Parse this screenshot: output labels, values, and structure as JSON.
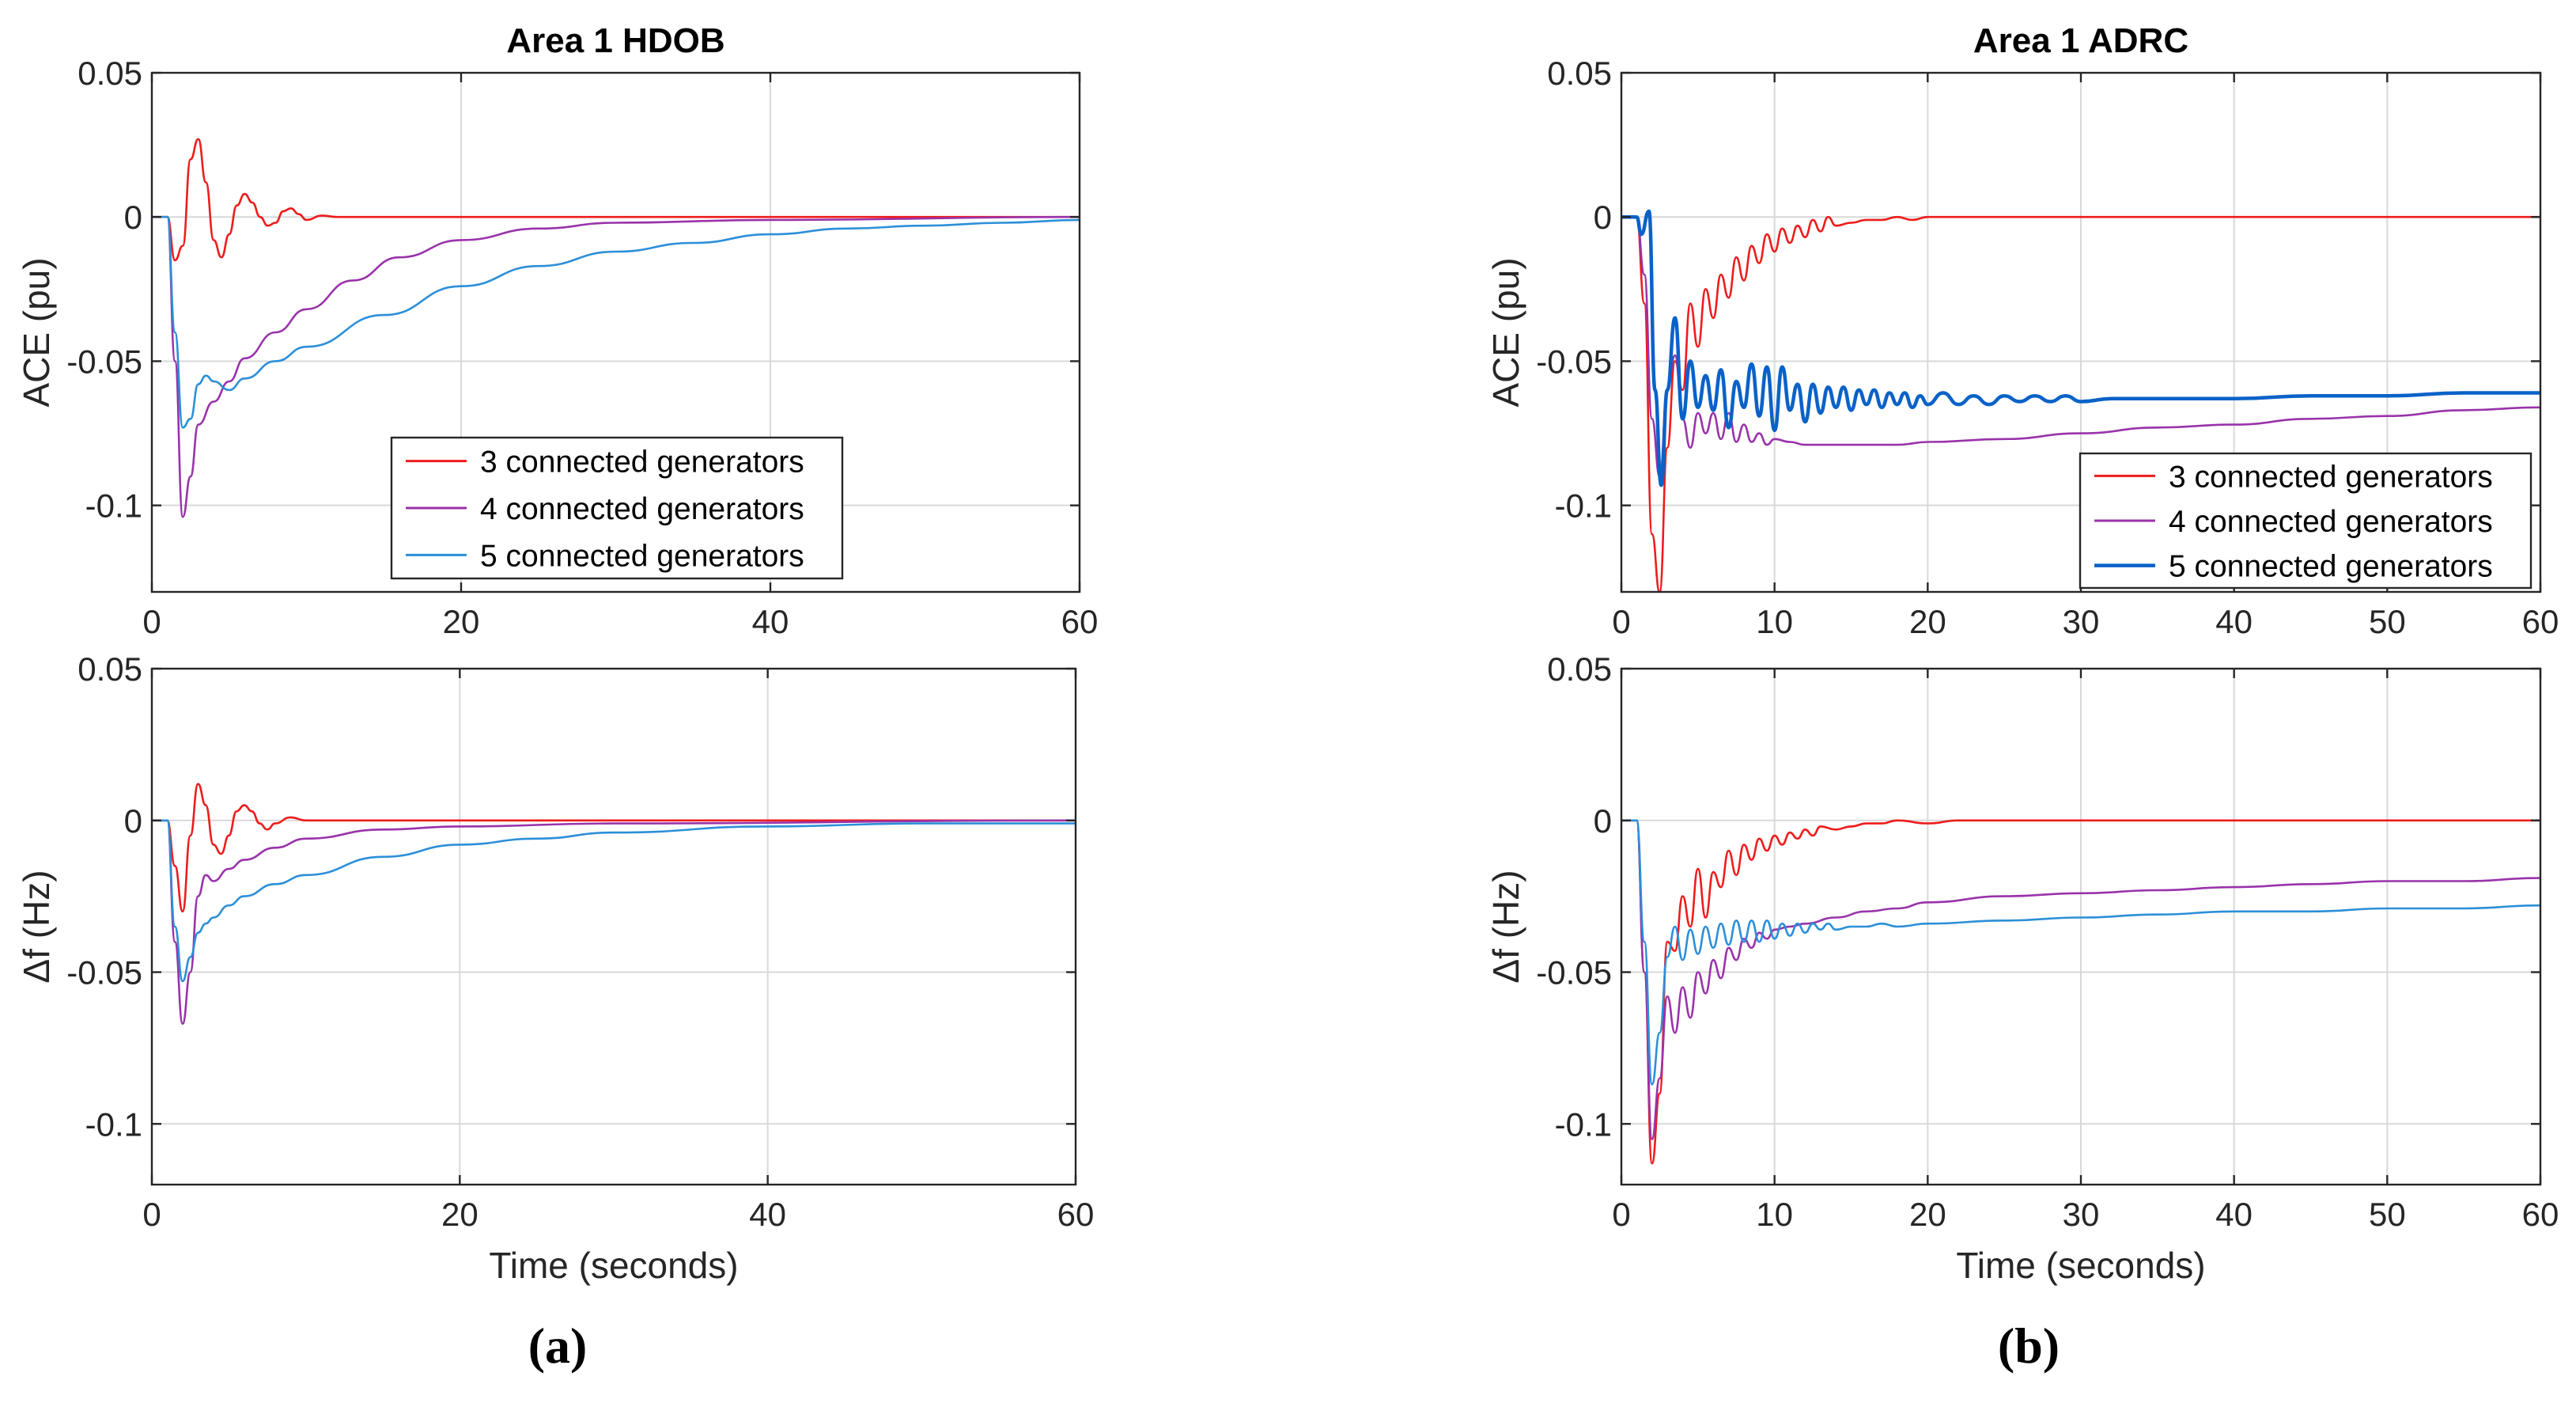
{
  "figure": {
    "panel_labels": [
      "(a)",
      "(b)"
    ]
  },
  "colors": {
    "red": "#ee1c1c",
    "purple": "#9933aa",
    "blue": "#2c8fd8",
    "blue_thick": "#0a62c8",
    "grid": "#d9d9d9",
    "axis": "#262626"
  },
  "chart_data": [
    {
      "id": "a_ace",
      "type": "line",
      "title": "Area 1 HDOB",
      "xlabel": "",
      "ylabel": "ACE (pu)",
      "xlim": [
        0,
        60
      ],
      "ylim": [
        -0.13,
        0.05
      ],
      "xticks": [
        0,
        20,
        40,
        60
      ],
      "xtick_labels": [
        "0",
        "20",
        "40",
        "60"
      ],
      "yticks": [
        0.05,
        0,
        -0.05,
        -0.1
      ],
      "ytick_labels": [
        "0.05",
        "0",
        "-0.05",
        "-0.1"
      ],
      "grid": true,
      "legend": {
        "position": "center-right-lower"
      },
      "series": [
        {
          "name": "3 connected generators",
          "color": "#ee1c1c",
          "x": [
            0,
            1,
            1.5,
            2,
            2.5,
            3,
            3.5,
            4,
            4.5,
            5,
            5.5,
            6,
            6.5,
            7,
            7.5,
            8,
            8.5,
            9,
            9.5,
            10,
            11,
            12,
            15,
            20,
            30,
            60
          ],
          "y": [
            0,
            0,
            -0.015,
            -0.01,
            0.02,
            0.027,
            0.012,
            -0.008,
            -0.014,
            -0.006,
            0.004,
            0.008,
            0.005,
            0,
            -0.003,
            -0.002,
            0.002,
            0.003,
            0.001,
            -0.001,
            0.0005,
            0,
            0,
            0,
            0,
            0
          ]
        },
        {
          "name": "4 connected generators",
          "color": "#9933aa",
          "x": [
            0,
            1,
            1.5,
            2,
            2.5,
            3,
            4,
            5,
            6,
            8,
            10,
            13,
            16,
            20,
            25,
            30,
            40,
            60
          ],
          "y": [
            0,
            0,
            -0.05,
            -0.104,
            -0.09,
            -0.072,
            -0.064,
            -0.057,
            -0.049,
            -0.04,
            -0.032,
            -0.022,
            -0.014,
            -0.008,
            -0.004,
            -0.002,
            -0.001,
            0
          ]
        },
        {
          "name": "5 connected generators",
          "color": "#2c8fd8",
          "x": [
            0,
            1,
            1.5,
            2,
            2.5,
            3,
            3.5,
            4,
            5,
            6,
            8,
            10,
            15,
            20,
            25,
            30,
            35,
            40,
            45,
            50,
            55,
            60
          ],
          "y": [
            0,
            0,
            -0.04,
            -0.073,
            -0.07,
            -0.058,
            -0.055,
            -0.057,
            -0.06,
            -0.056,
            -0.05,
            -0.045,
            -0.034,
            -0.024,
            -0.017,
            -0.012,
            -0.009,
            -0.006,
            -0.004,
            -0.003,
            -0.002,
            -0.001
          ]
        }
      ]
    },
    {
      "id": "a_df",
      "type": "line",
      "title": "",
      "xlabel": "Time (seconds)",
      "ylabel": "Δf (Hz)",
      "xlim": [
        0,
        60
      ],
      "ylim": [
        -0.12,
        0.05
      ],
      "xticks": [
        0,
        20,
        40,
        60
      ],
      "xtick_labels": [
        "0",
        "20",
        "40",
        "60"
      ],
      "yticks": [
        0.05,
        0,
        -0.05,
        -0.1
      ],
      "ytick_labels": [
        "0.05",
        "0",
        "-0.05",
        "-0.1"
      ],
      "grid": true,
      "series": [
        {
          "name": "3 connected generators",
          "color": "#ee1c1c",
          "x": [
            0,
            1,
            1.5,
            2,
            2.5,
            3,
            3.5,
            4,
            4.5,
            5,
            5.5,
            6,
            6.5,
            7,
            7.5,
            8,
            9,
            10,
            12,
            15,
            60
          ],
          "y": [
            0,
            0,
            -0.015,
            -0.03,
            -0.005,
            0.012,
            0.005,
            -0.008,
            -0.011,
            -0.005,
            0.003,
            0.005,
            0.003,
            -0.001,
            -0.003,
            -0.001,
            0.001,
            0,
            0,
            0,
            0
          ]
        },
        {
          "name": "4 connected generators",
          "color": "#9933aa",
          "x": [
            0,
            1,
            1.5,
            2,
            2.5,
            3,
            3.5,
            4,
            5,
            6,
            8,
            10,
            15,
            20,
            30,
            60
          ],
          "y": [
            0,
            0,
            -0.04,
            -0.067,
            -0.05,
            -0.025,
            -0.018,
            -0.02,
            -0.016,
            -0.013,
            -0.009,
            -0.006,
            -0.003,
            -0.002,
            -0.001,
            0
          ]
        },
        {
          "name": "5 connected generators",
          "color": "#2c8fd8",
          "x": [
            0,
            1,
            1.5,
            2,
            2.5,
            3,
            3.5,
            4,
            5,
            6,
            8,
            10,
            15,
            20,
            25,
            30,
            40,
            50,
            60
          ],
          "y": [
            0,
            0,
            -0.035,
            -0.053,
            -0.045,
            -0.037,
            -0.034,
            -0.032,
            -0.028,
            -0.025,
            -0.021,
            -0.018,
            -0.012,
            -0.008,
            -0.006,
            -0.004,
            -0.002,
            -0.001,
            -0.001
          ]
        }
      ]
    },
    {
      "id": "b_ace",
      "type": "line",
      "title": "Area 1 ADRC",
      "xlabel": "",
      "ylabel": "ACE (pu)",
      "xlim": [
        0,
        60
      ],
      "ylim": [
        -0.13,
        0.05
      ],
      "xticks": [
        0,
        10,
        20,
        30,
        40,
        50,
        60
      ],
      "xtick_labels": [
        "0",
        "10",
        "20",
        "30",
        "40",
        "50",
        "60"
      ],
      "yticks": [
        0.05,
        0,
        -0.05,
        -0.1
      ],
      "ytick_labels": [
        "0.05",
        "0",
        "-0.05",
        "-0.1"
      ],
      "grid": true,
      "legend": {
        "position": "bottom-right"
      },
      "series": [
        {
          "name": "3 connected generators",
          "color": "#ee1c1c",
          "x": [
            0,
            1,
            1.5,
            2,
            2.5,
            3,
            3.5,
            4,
            4.5,
            5,
            5.5,
            6,
            6.5,
            7,
            7.5,
            8,
            8.5,
            9,
            9.5,
            10,
            10.5,
            11,
            11.5,
            12,
            12.5,
            13,
            13.5,
            14,
            15,
            16,
            17,
            18,
            19,
            20,
            22,
            25,
            30,
            60
          ],
          "y": [
            0,
            0,
            -0.03,
            -0.11,
            -0.13,
            -0.08,
            -0.05,
            -0.06,
            -0.03,
            -0.045,
            -0.025,
            -0.035,
            -0.02,
            -0.028,
            -0.014,
            -0.022,
            -0.01,
            -0.016,
            -0.006,
            -0.012,
            -0.004,
            -0.009,
            -0.003,
            -0.007,
            -0.001,
            -0.005,
            0,
            -0.003,
            -0.002,
            -0.001,
            -0.001,
            0,
            -0.001,
            0,
            0,
            0,
            0,
            0
          ]
        },
        {
          "name": "4 connected generators",
          "color": "#9933aa",
          "x": [
            0,
            1,
            1.5,
            2,
            2.5,
            3,
            3.5,
            4,
            4.5,
            5,
            5.5,
            6,
            6.5,
            7,
            7.5,
            8,
            8.5,
            9,
            9.5,
            10,
            11,
            12,
            14,
            16,
            18,
            20,
            25,
            30,
            35,
            40,
            45,
            50,
            55,
            60
          ],
          "y": [
            0,
            0,
            -0.02,
            -0.07,
            -0.09,
            -0.06,
            -0.048,
            -0.07,
            -0.08,
            -0.068,
            -0.075,
            -0.068,
            -0.077,
            -0.068,
            -0.078,
            -0.072,
            -0.078,
            -0.075,
            -0.079,
            -0.077,
            -0.078,
            -0.079,
            -0.079,
            -0.079,
            -0.079,
            -0.078,
            -0.077,
            -0.075,
            -0.073,
            -0.072,
            -0.07,
            -0.069,
            -0.067,
            -0.066
          ]
        },
        {
          "name": "5 connected generators",
          "color": "#0a62c8",
          "width": 4.5,
          "x": [
            0,
            1,
            1.3,
            1.8,
            2.2,
            2.6,
            3,
            3.5,
            4,
            4.5,
            5,
            5.5,
            6,
            6.5,
            7,
            7.5,
            8,
            8.5,
            9,
            9.5,
            10,
            10.5,
            11,
            11.5,
            12,
            12.5,
            13,
            13.5,
            14,
            14.5,
            15,
            15.5,
            16,
            16.5,
            17,
            17.5,
            18,
            18.5,
            19,
            19.5,
            20,
            21,
            22,
            23,
            24,
            25,
            26,
            27,
            28,
            29,
            30,
            32,
            34,
            36,
            38,
            40,
            45,
            50,
            55,
            60
          ],
          "y": [
            0,
            0,
            -0.006,
            0.002,
            -0.06,
            -0.093,
            -0.06,
            -0.035,
            -0.07,
            -0.05,
            -0.066,
            -0.055,
            -0.067,
            -0.053,
            -0.073,
            -0.057,
            -0.066,
            -0.051,
            -0.069,
            -0.052,
            -0.074,
            -0.052,
            -0.067,
            -0.058,
            -0.071,
            -0.058,
            -0.068,
            -0.059,
            -0.066,
            -0.059,
            -0.067,
            -0.06,
            -0.065,
            -0.06,
            -0.066,
            -0.061,
            -0.065,
            -0.061,
            -0.066,
            -0.062,
            -0.065,
            -0.061,
            -0.065,
            -0.062,
            -0.065,
            -0.062,
            -0.064,
            -0.062,
            -0.064,
            -0.062,
            -0.064,
            -0.063,
            -0.063,
            -0.063,
            -0.063,
            -0.063,
            -0.062,
            -0.062,
            -0.061,
            -0.061
          ]
        }
      ]
    },
    {
      "id": "b_df",
      "type": "line",
      "title": "",
      "xlabel": "Time (seconds)",
      "ylabel": "Δf (Hz)",
      "xlim": [
        0,
        60
      ],
      "ylim": [
        -0.12,
        0.05
      ],
      "xticks": [
        0,
        10,
        20,
        30,
        40,
        50,
        60
      ],
      "xtick_labels": [
        "0",
        "10",
        "20",
        "30",
        "40",
        "50",
        "60"
      ],
      "yticks": [
        0.05,
        0,
        -0.05,
        -0.1
      ],
      "ytick_labels": [
        "0.05",
        "0",
        "-0.05",
        "-0.1"
      ],
      "grid": true,
      "series": [
        {
          "name": "3 connected generators",
          "color": "#ee1c1c",
          "x": [
            0,
            1,
            1.5,
            2,
            2.5,
            3,
            3.5,
            4,
            4.5,
            5,
            5.5,
            6,
            6.5,
            7,
            7.5,
            8,
            8.5,
            9,
            9.5,
            10,
            10.5,
            11,
            11.5,
            12,
            12.5,
            13,
            14,
            15,
            16,
            17,
            18,
            20,
            22,
            25,
            30,
            60
          ],
          "y": [
            0,
            0,
            -0.05,
            -0.113,
            -0.09,
            -0.04,
            -0.043,
            -0.025,
            -0.035,
            -0.016,
            -0.032,
            -0.017,
            -0.022,
            -0.01,
            -0.018,
            -0.008,
            -0.013,
            -0.006,
            -0.01,
            -0.005,
            -0.008,
            -0.004,
            -0.006,
            -0.003,
            -0.005,
            -0.002,
            -0.003,
            -0.002,
            -0.001,
            -0.001,
            0,
            -0.001,
            0,
            0,
            0,
            0
          ]
        },
        {
          "name": "4 connected generators",
          "color": "#9933aa",
          "x": [
            0,
            1,
            1.5,
            2,
            2.5,
            3,
            3.5,
            4,
            4.5,
            5,
            5.5,
            6,
            6.5,
            7,
            7.5,
            8,
            8.5,
            9,
            9.5,
            10,
            11,
            12,
            14,
            16,
            18,
            20,
            25,
            30,
            35,
            40,
            45,
            50,
            55,
            60
          ],
          "y": [
            0,
            0,
            -0.05,
            -0.105,
            -0.085,
            -0.058,
            -0.07,
            -0.055,
            -0.065,
            -0.05,
            -0.057,
            -0.046,
            -0.052,
            -0.042,
            -0.046,
            -0.039,
            -0.042,
            -0.037,
            -0.039,
            -0.036,
            -0.035,
            -0.034,
            -0.032,
            -0.03,
            -0.029,
            -0.027,
            -0.025,
            -0.024,
            -0.023,
            -0.022,
            -0.021,
            -0.02,
            -0.02,
            -0.019
          ]
        },
        {
          "name": "5 connected generators",
          "color": "#2c8fd8",
          "x": [
            0,
            1,
            1.5,
            2,
            2.5,
            3,
            3.5,
            4,
            4.5,
            5,
            5.5,
            6,
            6.5,
            7,
            7.5,
            8,
            8.5,
            9,
            9.5,
            10,
            10.5,
            11,
            11.5,
            12,
            12.5,
            13,
            13.5,
            14,
            15,
            16,
            17,
            18,
            20,
            25,
            30,
            35,
            40,
            45,
            50,
            55,
            60
          ],
          "y": [
            0,
            0,
            -0.04,
            -0.087,
            -0.07,
            -0.045,
            -0.035,
            -0.046,
            -0.036,
            -0.044,
            -0.035,
            -0.042,
            -0.034,
            -0.041,
            -0.033,
            -0.04,
            -0.033,
            -0.04,
            -0.033,
            -0.039,
            -0.034,
            -0.038,
            -0.034,
            -0.037,
            -0.034,
            -0.036,
            -0.034,
            -0.036,
            -0.035,
            -0.035,
            -0.034,
            -0.035,
            -0.034,
            -0.033,
            -0.032,
            -0.031,
            -0.03,
            -0.03,
            -0.029,
            -0.029,
            -0.028
          ]
        }
      ]
    }
  ]
}
